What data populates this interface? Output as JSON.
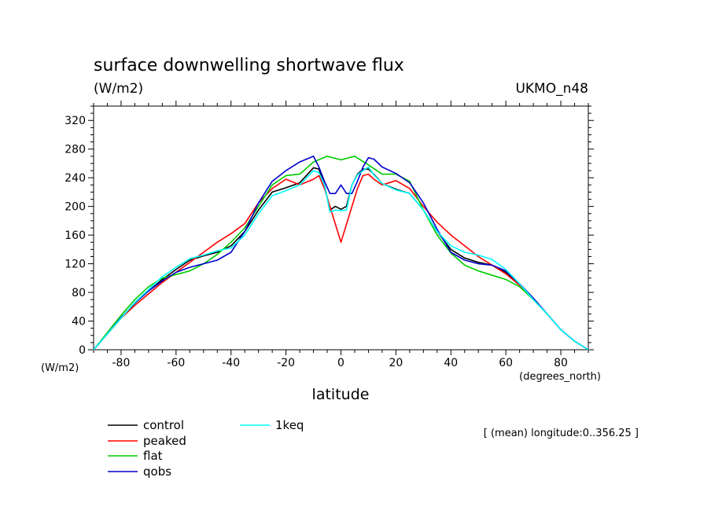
{
  "chart_data": {
    "type": "line",
    "title": "surface downwelling shortwave flux",
    "ylabel": "(W/m2)",
    "ylabel_bottom": "(W/m2)",
    "xlabel": "latitude",
    "xunits": "(degrees_north)",
    "source": "UKMO_n48",
    "note": "[ (mean) longitude:0..356.25 ]",
    "xlim": [
      -90,
      90
    ],
    "ylim": [
      0,
      340
    ],
    "xticks": [
      -80,
      -60,
      -40,
      -20,
      0,
      20,
      40,
      60,
      80
    ],
    "yticks": [
      0,
      40,
      80,
      120,
      160,
      200,
      240,
      280,
      320
    ],
    "series": [
      {
        "name": "control",
        "color": "#000000",
        "x": [
          -90,
          -85,
          -80,
          -75,
          -70,
          -65,
          -60,
          -55,
          -50,
          -45,
          -40,
          -35,
          -30,
          -25,
          -20,
          -15,
          -10,
          -8,
          -6,
          -4,
          -2,
          0,
          2,
          4,
          6,
          8,
          10,
          12,
          15,
          20,
          25,
          30,
          35,
          40,
          45,
          50,
          55,
          60,
          65,
          70,
          75,
          80,
          85,
          90
        ],
        "y": [
          0,
          22,
          44,
          65,
          82,
          98,
          112,
          125,
          131,
          136,
          145,
          165,
          195,
          220,
          226,
          233,
          254,
          252,
          230,
          195,
          200,
          196,
          200,
          230,
          245,
          252,
          252,
          245,
          232,
          224,
          218,
          195,
          165,
          140,
          128,
          122,
          118,
          108,
          92,
          72,
          50,
          28,
          12,
          0
        ]
      },
      {
        "name": "peaked",
        "color": "#ff0000",
        "x": [
          -90,
          -85,
          -80,
          -75,
          -70,
          -65,
          -60,
          -55,
          -50,
          -45,
          -40,
          -35,
          -30,
          -25,
          -20,
          -15,
          -10,
          -8,
          -6,
          -4,
          -2,
          0,
          2,
          4,
          6,
          8,
          10,
          12,
          15,
          20,
          25,
          30,
          35,
          40,
          45,
          50,
          55,
          60,
          65,
          70,
          75,
          80,
          85,
          90
        ],
        "y": [
          0,
          22,
          44,
          62,
          78,
          94,
          108,
          122,
          136,
          150,
          162,
          176,
          205,
          225,
          238,
          230,
          238,
          243,
          225,
          200,
          175,
          150,
          175,
          200,
          225,
          243,
          245,
          238,
          230,
          236,
          225,
          200,
          178,
          160,
          145,
          130,
          118,
          106,
          90,
          70,
          50,
          28,
          12,
          0
        ]
      },
      {
        "name": "flat",
        "color": "#00cc00",
        "x": [
          -90,
          -85,
          -80,
          -75,
          -70,
          -65,
          -60,
          -55,
          -50,
          -45,
          -40,
          -35,
          -30,
          -25,
          -20,
          -15,
          -10,
          -5,
          0,
          5,
          10,
          15,
          20,
          25,
          30,
          35,
          40,
          45,
          50,
          55,
          60,
          65,
          70,
          75,
          80,
          85,
          90
        ],
        "y": [
          0,
          24,
          48,
          70,
          88,
          100,
          105,
          110,
          120,
          133,
          150,
          170,
          200,
          230,
          243,
          245,
          262,
          270,
          265,
          270,
          258,
          245,
          245,
          235,
          195,
          160,
          135,
          118,
          110,
          104,
          98,
          88,
          70,
          50,
          28,
          12,
          0
        ]
      },
      {
        "name": "qobs",
        "color": "#0000cc",
        "x": [
          -90,
          -85,
          -80,
          -75,
          -70,
          -65,
          -60,
          -55,
          -50,
          -45,
          -40,
          -35,
          -30,
          -25,
          -20,
          -15,
          -10,
          -8,
          -6,
          -4,
          -2,
          0,
          2,
          4,
          6,
          8,
          10,
          12,
          15,
          20,
          25,
          30,
          35,
          40,
          45,
          50,
          55,
          60,
          65,
          70,
          75,
          80,
          85,
          90
        ],
        "y": [
          0,
          22,
          45,
          65,
          82,
          96,
          108,
          115,
          120,
          125,
          136,
          165,
          205,
          235,
          250,
          262,
          270,
          255,
          235,
          218,
          218,
          230,
          218,
          218,
          235,
          255,
          268,
          266,
          255,
          246,
          233,
          205,
          168,
          136,
          125,
          120,
          118,
          110,
          92,
          72,
          50,
          28,
          12,
          0
        ]
      },
      {
        "name": "1keq",
        "color": "#00ffff",
        "x": [
          -90,
          -85,
          -80,
          -75,
          -70,
          -65,
          -60,
          -55,
          -50,
          -45,
          -40,
          -35,
          -30,
          -25,
          -20,
          -15,
          -10,
          -8,
          -6,
          -4,
          -2,
          0,
          2,
          4,
          6,
          8,
          10,
          12,
          15,
          20,
          25,
          30,
          35,
          40,
          45,
          50,
          55,
          60,
          65,
          70,
          75,
          80,
          85,
          90
        ],
        "y": [
          0,
          22,
          44,
          66,
          84,
          102,
          115,
          127,
          132,
          138,
          142,
          160,
          190,
          215,
          222,
          230,
          250,
          247,
          230,
          192,
          195,
          194,
          195,
          230,
          244,
          250,
          255,
          244,
          232,
          223,
          218,
          195,
          165,
          145,
          136,
          132,
          126,
          112,
          92,
          70,
          50,
          28,
          12,
          0
        ]
      }
    ]
  }
}
